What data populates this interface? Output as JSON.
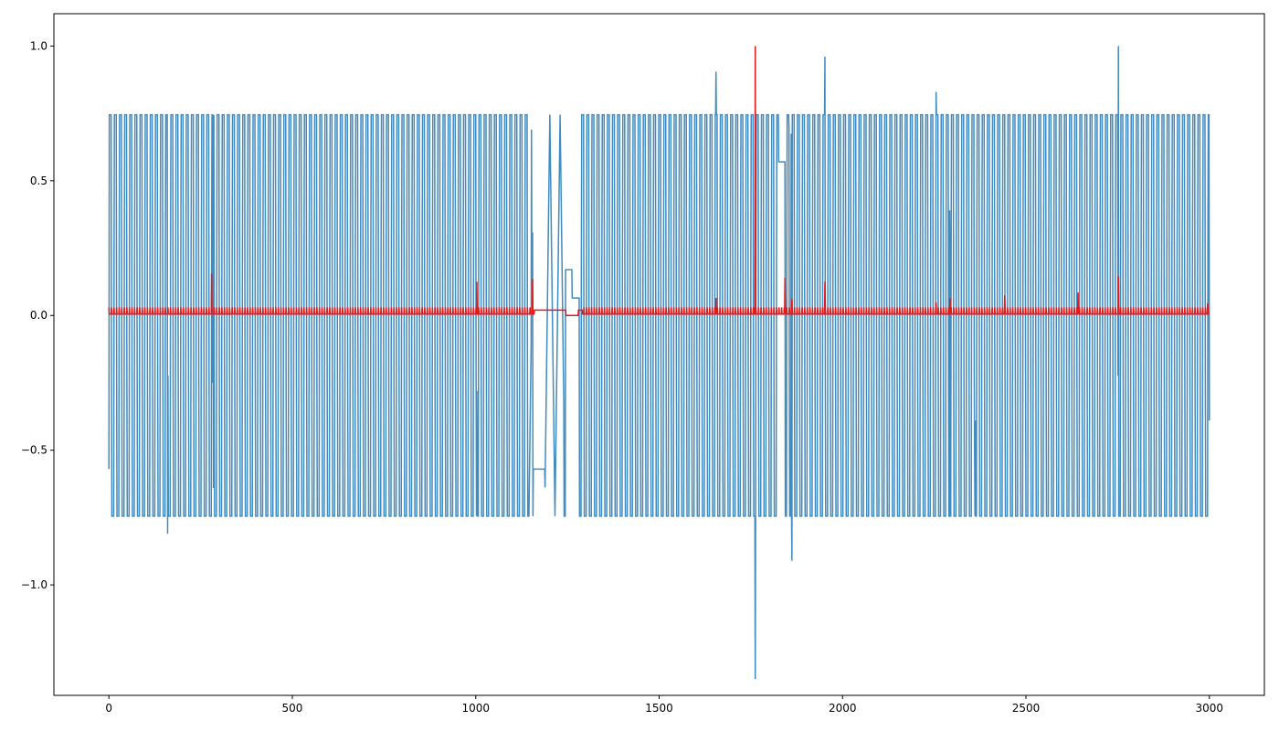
{
  "chart_data": {
    "type": "line",
    "title": "",
    "xlabel": "",
    "ylabel": "",
    "xlim": [
      -150,
      3150
    ],
    "ylim": [
      -1.41,
      1.12
    ],
    "xticks": [
      0,
      500,
      1000,
      1500,
      2000,
      2500,
      3000
    ],
    "xtick_labels": [
      "0",
      "500",
      "1000",
      "1500",
      "2000",
      "2500",
      "3000"
    ],
    "yticks": [
      -1.0,
      -0.5,
      0.0,
      0.5,
      1.0
    ],
    "ytick_labels": [
      "−1.0",
      "−0.5",
      "0.0",
      "0.5",
      "1.0"
    ],
    "grid": false,
    "legend": "none",
    "colors": {
      "signal": "#1f77b4",
      "score": "#e31a1c"
    },
    "signal": {
      "description_note": "",
      "period": 14,
      "amplitude": 0.745,
      "x_range": [
        0,
        3000
      ],
      "start_value": -0.57,
      "end_value": -0.39,
      "segments": [
        {
          "x": [
            1145,
            1155
          ],
          "values": [
            -0.745,
            0.73
          ]
        },
        {
          "x": [
            1157,
            1188
          ],
          "values": [
            -0.57,
            -0.57
          ]
        },
        {
          "x": [
            1188,
            1240
          ],
          "values": [
            -0.745,
            0.745
          ]
        },
        {
          "x": [
            1245,
            1262
          ],
          "values": [
            0.17,
            0.17
          ]
        },
        {
          "x": [
            1262,
            1282
          ],
          "values": [
            0.065,
            0.065
          ]
        },
        {
          "x": [
            1826,
            1843
          ],
          "values": [
            0.57,
            0.57
          ]
        }
      ],
      "spikes": [
        {
          "x": 160,
          "value": -0.81
        },
        {
          "x": 283,
          "value": -0.25
        },
        {
          "x": 285,
          "value": -0.64
        },
        {
          "x": 1003,
          "value": -0.28
        },
        {
          "x": 1004,
          "value": -0.57
        },
        {
          "x": 1152,
          "value": 0.69
        },
        {
          "x": 1655,
          "value": 0.905
        },
        {
          "x": 1762,
          "value": -1.35
        },
        {
          "x": 1854,
          "value": 0.7
        },
        {
          "x": 1860,
          "value": 0.675
        },
        {
          "x": 1862,
          "value": -0.91
        },
        {
          "x": 1952,
          "value": 0.96
        },
        {
          "x": 2255,
          "value": 0.83
        },
        {
          "x": 2292,
          "value": 0.39
        },
        {
          "x": 2293,
          "value": 0.18
        },
        {
          "x": 2360,
          "value": -0.52
        },
        {
          "x": 2362,
          "value": -0.39
        },
        {
          "x": 2752,
          "value": 1.0
        }
      ]
    },
    "score": {
      "baseline": 0.005,
      "peak_every": 7,
      "peak_value": 0.03,
      "flat_range": [
        1160,
        1290
      ],
      "flat_value": 0.02,
      "spikes": [
        {
          "x": 280,
          "value": 0.155
        },
        {
          "x": 1003,
          "value": 0.125
        },
        {
          "x": 1155,
          "value": 0.135
        },
        {
          "x": 1655,
          "value": 0.065
        },
        {
          "x": 1762,
          "value": 1.0
        },
        {
          "x": 1843,
          "value": 0.14
        },
        {
          "x": 1862,
          "value": 0.06
        },
        {
          "x": 1952,
          "value": 0.125
        },
        {
          "x": 2255,
          "value": 0.05
        },
        {
          "x": 2293,
          "value": 0.065
        },
        {
          "x": 2442,
          "value": 0.075
        },
        {
          "x": 2642,
          "value": 0.085
        },
        {
          "x": 2752,
          "value": 0.145
        },
        {
          "x": 2995,
          "value": 0.045
        }
      ]
    }
  }
}
